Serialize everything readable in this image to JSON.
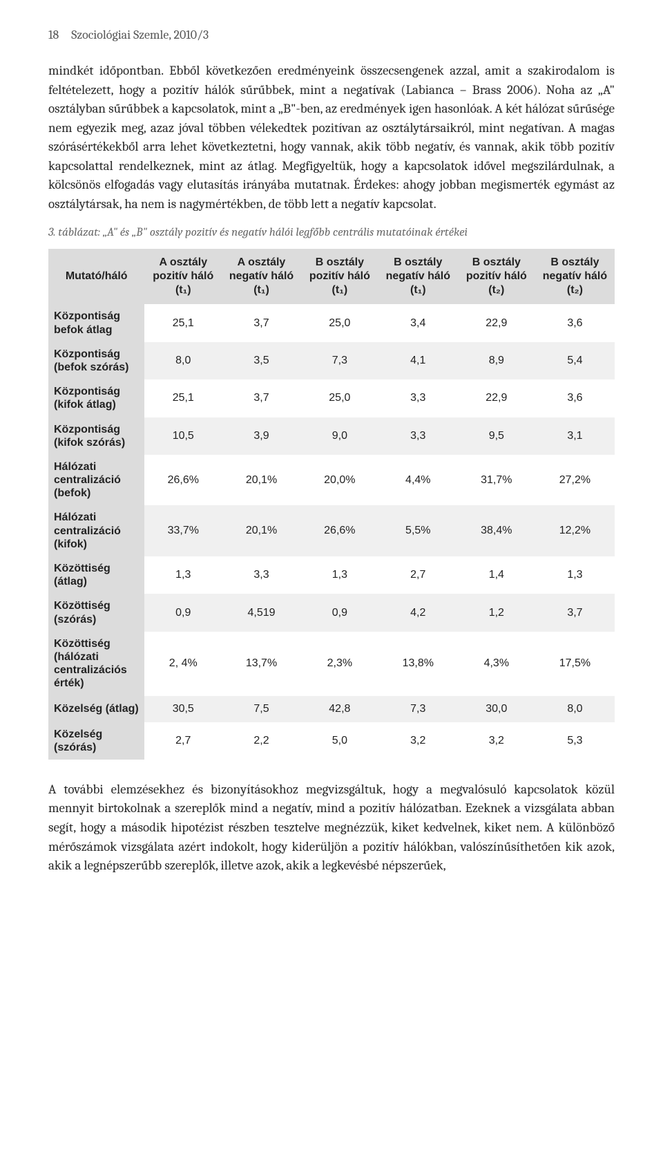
{
  "header": {
    "page_number": "18",
    "journal": "Szociológiai Szemle, 2010/3"
  },
  "paragraphs": {
    "p1": "mindkét időpontban. Ebből következően eredményeink összecsengenek azzal, amit a szakirodalom is feltételezett, hogy a pozitív hálók sűrűbbek, mint a negatívak (Labianca – Brass 2006). Noha az „A\" osztályban sűrűbbek a kapcsolatok, mint a „B\"-ben, az eredmények igen hasonlóak. A két hálózat sűrűsége nem egyezik meg, azaz jóval többen vélekedtek pozitívan az osztálytársaikról, mint negatívan. A magas szórásértékekből arra lehet következtetni, hogy vannak, akik több negatív, és vannak, akik több pozitív kapcsolattal rendelkeznek, mint az átlag. Megfigyeltük, hogy a kapcsolatok idővel megszilárdulnak, a kölcsönös elfogadás vagy elutasítás irányába mutatnak. Érdekes: ahogy jobban megismerték egymást az osztálytársak, ha nem is nagymértékben, de több lett a negatív kapcsolat.",
    "p2": "A további elemzésekhez és bizonyításokhoz megvizsgáltuk, hogy a megvalósuló kapcsolatok közül mennyit birtokolnak a szereplők mind a negatív, mind a pozitív hálózatban. Ezeknek a vizsgálata abban segít, hogy a második hipotézist részben tesztelve megnézzük, kiket kedvelnek, kiket nem. A különböző mérőszámok vizsgálata azért indokolt, hogy kiderüljön a pozitív hálókban, valószínűsíthetően kik azok, akik a legnépszerűbb szereplők, illetve azok, akik a legkevésbé népszerűek,"
  },
  "table": {
    "caption": "3. táblázat: „A\" és „B\" osztály pozitív és negatív hálói legfőbb centrális mutatóinak értékei",
    "columns": [
      "Mutató/háló",
      "A osztály pozitív háló (t₁)",
      "A osztály negatív háló (t₁)",
      "B osztály pozitív háló (t₁)",
      "B osztály negatív háló (t₁)",
      "B osztály pozitív háló (t₂)",
      "B osztály negatív háló (t₂)"
    ],
    "rows": [
      {
        "label": "Központiság befok átlag",
        "c": [
          "25,1",
          "3,7",
          "25,0",
          "3,4",
          "22,9",
          "3,6"
        ]
      },
      {
        "label": "Központiság (befok szórás)",
        "c": [
          "8,0",
          "3,5",
          "7,3",
          "4,1",
          "8,9",
          "5,4"
        ]
      },
      {
        "label": "Központiság (kifok átlag)",
        "c": [
          "25,1",
          "3,7",
          "25,0",
          "3,3",
          "22,9",
          "3,6"
        ]
      },
      {
        "label": "Központiság (kifok szórás)",
        "c": [
          "10,5",
          "3,9",
          "9,0",
          "3,3",
          "9,5",
          "3,1"
        ]
      },
      {
        "label": "Hálózati centralizáció (befok)",
        "c": [
          "26,6%",
          "20,1%",
          "20,0%",
          "4,4%",
          "31,7%",
          "27,2%"
        ]
      },
      {
        "label": "Hálózati centralizáció (kifok)",
        "c": [
          "33,7%",
          "20,1%",
          "26,6%",
          "5,5%",
          "38,4%",
          "12,2%"
        ]
      },
      {
        "label": "Közöttiség (átlag)",
        "c": [
          "1,3",
          "3,3",
          "1,3",
          "2,7",
          "1,4",
          "1,3"
        ]
      },
      {
        "label": "Közöttiség (szórás)",
        "c": [
          "0,9",
          "4,519",
          "0,9",
          "4,2",
          "1,2",
          "3,7"
        ]
      },
      {
        "label": "Közöttiség (hálózati centralizációs érték)",
        "c": [
          "2, 4%",
          "13,7%",
          "2,3%",
          "13,8%",
          "4,3%",
          "17,5%"
        ]
      },
      {
        "label": "Közelség (átlag)",
        "c": [
          "30,5",
          "7,5",
          "42,8",
          "7,3",
          "30,0",
          "8,0"
        ]
      },
      {
        "label": "Közelség (szórás)",
        "c": [
          "2,7",
          "2,2",
          "5,0",
          "3,2",
          "3,2",
          "5,3"
        ]
      }
    ],
    "style": {
      "header_bg": "#dcdcdc",
      "row_alt_bg": "#f0f0f0",
      "row_bg": "#ffffff",
      "text_color": "#222222",
      "font_family": "Segoe UI, Myriad Pro, Arial, sans-serif",
      "font_size_pt": 12
    }
  }
}
